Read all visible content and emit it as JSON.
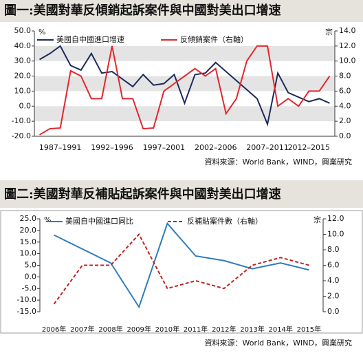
{
  "chart_data": [
    {
      "type": "line",
      "title": "圖一:美國對華反傾銷起訴案件與中國對美出口增速",
      "y_unit": "%",
      "y2_unit": "宗",
      "source": "資料來源：World Bank，WIND，興業研究",
      "grid": true,
      "categories": [
        null,
        null,
        "1987–1991",
        null,
        null,
        null,
        null,
        "1992–1996",
        null,
        null,
        null,
        null,
        "1997–2001",
        null,
        null,
        null,
        null,
        "2002–2006",
        null,
        null,
        null,
        null,
        "2007–2011",
        null,
        null,
        null,
        "2012–2015",
        null,
        null
      ],
      "ylim": [
        -20,
        50
      ],
      "yticks": [
        {
          "value": -20,
          "label": "-20.0"
        },
        {
          "value": -10,
          "label": "-10.0"
        },
        {
          "value": 0,
          "label": "0.0"
        },
        {
          "value": 10,
          "label": "10.0"
        },
        {
          "value": 20,
          "label": "20.0"
        },
        {
          "value": 30,
          "label": "30.0"
        },
        {
          "value": 40,
          "label": "40.0"
        },
        {
          "value": 50,
          "label": "50.0"
        }
      ],
      "y2lim": [
        0,
        14
      ],
      "y2ticks": [
        {
          "value": 0,
          "label": "0.0"
        },
        {
          "value": 2,
          "label": "2.0"
        },
        {
          "value": 4,
          "label": "4.0"
        },
        {
          "value": 6,
          "label": "6.0"
        },
        {
          "value": 8,
          "label": "8.0"
        },
        {
          "value": 10,
          "label": "10.0"
        },
        {
          "value": 12,
          "label": "12.0"
        },
        {
          "value": 14,
          "label": "14.0"
        }
      ],
      "series": [
        {
          "name": "美國自中國進口增速",
          "color": "#1c2a5a",
          "line_style": "solid",
          "values": [
            31,
            35,
            40,
            27,
            24,
            35,
            22,
            23,
            18,
            13,
            21,
            14,
            15,
            21,
            2,
            21,
            22,
            29,
            23,
            17,
            11,
            5,
            -12,
            22,
            9,
            6,
            3,
            5,
            2
          ]
        },
        {
          "name": "反傾銷案件（右軸）",
          "color": "#e3262d",
          "axis": "y2",
          "line_style": "solid",
          "values": [
            0.2,
            1,
            1.1,
            8.7,
            8,
            5,
            5,
            12,
            5,
            5,
            1,
            1.1,
            6,
            7,
            8,
            9,
            8,
            9,
            3,
            5,
            10,
            12,
            12,
            4,
            5,
            4,
            6,
            6,
            8
          ]
        }
      ]
    },
    {
      "type": "line",
      "title": "圖二:美國對華反補貼起訴案件與中國對美出口增速",
      "y_unit": "%",
      "y2_unit": "宗",
      "source": "資料來源：World Bank，WIND，興業研究",
      "grid": false,
      "categories": [
        "2006年",
        "2007年",
        "2008年",
        "2009年",
        "2010年",
        "2011年",
        "2012年",
        "2013年",
        "2014年",
        "2015年"
      ],
      "ylim": [
        -15,
        25
      ],
      "yticks": [
        {
          "value": -15,
          "label": "-15.0"
        },
        {
          "value": -10,
          "label": "-10.0"
        },
        {
          "value": -5,
          "label": "-5.0"
        },
        {
          "value": 0,
          "label": "0.0"
        },
        {
          "value": 5,
          "label": "5.0"
        },
        {
          "value": 10,
          "label": "10.0"
        },
        {
          "value": 15,
          "label": "15.0"
        },
        {
          "value": 20,
          "label": "20.0"
        },
        {
          "value": 25,
          "label": "25.0"
        }
      ],
      "y2lim": [
        0,
        12
      ],
      "y2ticks": [
        {
          "value": 0,
          "label": "0.0"
        },
        {
          "value": 2,
          "label": "2.0"
        },
        {
          "value": 4,
          "label": "4.0"
        },
        {
          "value": 6,
          "label": "6.0"
        },
        {
          "value": 8,
          "label": "8.0"
        },
        {
          "value": 10,
          "label": "10.0"
        },
        {
          "value": 12,
          "label": "12.0"
        }
      ],
      "series": [
        {
          "name": "美國自中國進口同比",
          "color": "#2f7bbf",
          "line_style": "solid",
          "values": [
            18,
            12,
            6,
            -13,
            23,
            9,
            7,
            3.5,
            6,
            3
          ]
        },
        {
          "name": "反補貼案件數（右軸）",
          "color": "#c0211f",
          "axis": "y2",
          "line_style": "dashed",
          "values": [
            1,
            6,
            6,
            10,
            3,
            4,
            3,
            6,
            7,
            6
          ]
        }
      ]
    }
  ]
}
